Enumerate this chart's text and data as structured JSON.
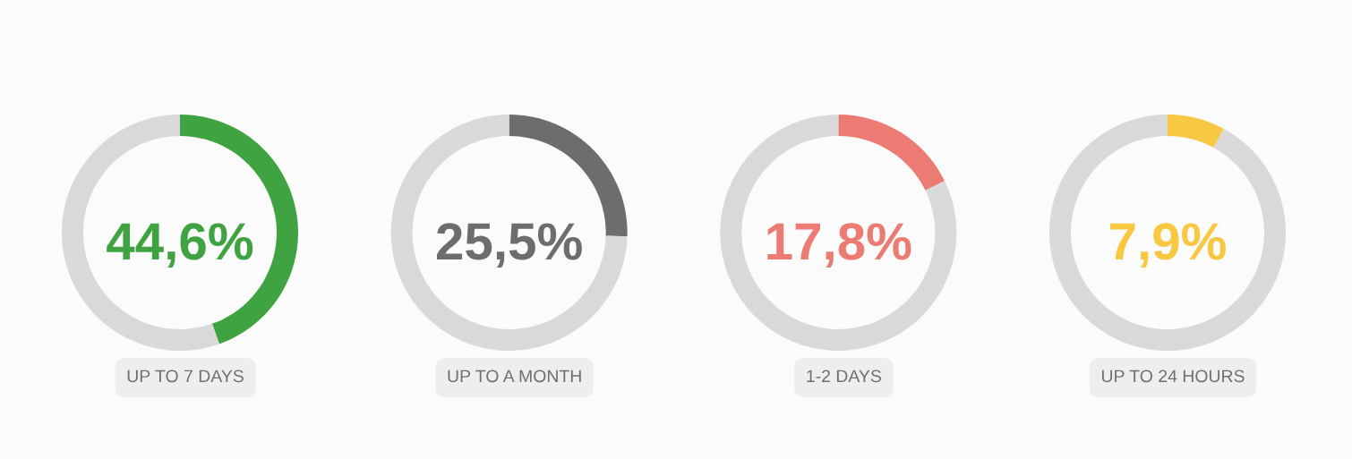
{
  "chart_data": [
    {
      "type": "donut",
      "title": "UP TO 7 DAYS",
      "categories": [
        null,
        null
      ],
      "values": [
        44.6,
        55.4
      ],
      "colors": [
        "#3fa342",
        "#d9d9d9"
      ],
      "annotations": [
        "44,6%"
      ]
    },
    {
      "type": "donut",
      "title": "UP TO A MONTH",
      "categories": [
        null,
        null
      ],
      "values": [
        25.5,
        74.5
      ],
      "colors": [
        "#6d6d6d",
        "#d9d9d9"
      ],
      "annotations": [
        "25,5%"
      ]
    },
    {
      "type": "donut",
      "title": "1-2 DAYS",
      "categories": [
        null,
        null
      ],
      "values": [
        17.8,
        82.2
      ],
      "colors": [
        "#eb7b73",
        "#d9d9d9"
      ],
      "annotations": [
        "17,8%"
      ]
    },
    {
      "type": "donut",
      "title": "UP TO 24 HOURS",
      "categories": [
        null,
        null
      ],
      "values": [
        7.9,
        92.1
      ],
      "colors": [
        "#f8c843",
        "#d9d9d9"
      ],
      "annotations": [
        "7,9%"
      ]
    }
  ]
}
